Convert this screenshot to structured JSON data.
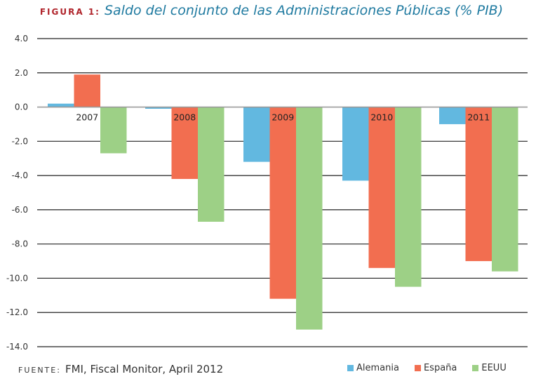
{
  "title": {
    "figure_label": "FIGURA 1:",
    "text": "Saldo del conjunto de las Administraciones Públicas (% PIB)"
  },
  "source": {
    "label": "FUENTE:",
    "text": "FMI, Fiscal Monitor, April 2012"
  },
  "colors": {
    "Alemania": "#62b8e0",
    "España": "#f26e50",
    "EEUU": "#9dd086",
    "title_label": "#b0242b",
    "title_text": "#1f7aa0"
  },
  "chart_data": {
    "type": "bar",
    "title": "Saldo del conjunto de las Administraciones Públicas (% PIB)",
    "xlabel": "",
    "ylabel": "",
    "categories": [
      "2007",
      "2008",
      "2009",
      "2010",
      "2011"
    ],
    "series": [
      {
        "name": "Alemania",
        "values": [
          0.2,
          -0.1,
          -3.2,
          -4.3,
          -1.0
        ]
      },
      {
        "name": "España",
        "values": [
          1.9,
          -4.2,
          -11.2,
          -9.4,
          -9.0
        ]
      },
      {
        "name": "EEUU",
        "values": [
          -2.7,
          -6.7,
          -13.0,
          -10.5,
          -9.6
        ]
      }
    ],
    "ylim": [
      -14,
      4
    ],
    "yticks": [
      "4.0",
      "2.0",
      "0.0",
      "-2.0",
      "-4.0",
      "-6.0",
      "-8.0",
      "-10.0",
      "-12.0",
      "-14.0"
    ],
    "ytick_values": [
      4,
      2,
      0,
      -2,
      -4,
      -6,
      -8,
      -10,
      -12,
      -14
    ],
    "grid": true,
    "legend": "bottom-right"
  }
}
